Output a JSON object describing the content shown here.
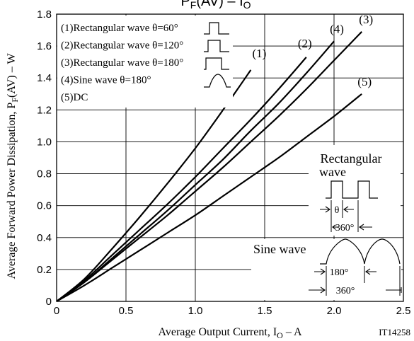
{
  "chart_data": {
    "type": "line",
    "title_main": "P",
    "title_main_sub": "F",
    "title_rest": "(AV)  –  I",
    "title_rest_sub": "O",
    "xlabel_main": "Average Output Current, I",
    "xlabel_sub": "O",
    "xlabel_unit": "  –  A",
    "ylabel_main": "Average Forward Power Dissipation, P",
    "ylabel_sub": "F",
    "ylabel_unit": "(AV)  –  W",
    "figure_code": "IT14258",
    "xlim": [
      0,
      2.5
    ],
    "ylim": [
      0,
      1.8
    ],
    "x_ticks": [
      "0",
      "0.5",
      "1.0",
      "1.5",
      "2.0",
      "2.5"
    ],
    "y_ticks": [
      "0",
      "0.2",
      "0.4",
      "0.6",
      "0.8",
      "1.0",
      "1.2",
      "1.4",
      "1.6",
      "1.8"
    ],
    "grid": true,
    "legend": [
      {
        "key": "1",
        "text": "(1)Rectangular wave θ=60°",
        "symbol": "rect60"
      },
      {
        "key": "2",
        "text": "(2)Rectangular wave θ=120°",
        "symbol": "rect120"
      },
      {
        "key": "3",
        "text": "(3)Rectangular wave θ=180°",
        "symbol": "rect180"
      },
      {
        "key": "4",
        "text": "(4)Sine wave θ=180°",
        "symbol": "sine"
      },
      {
        "key": "5",
        "text": "(5)DC",
        "symbol": ""
      }
    ],
    "series": [
      {
        "name": "(1)",
        "x": [
          0,
          0.2,
          0.4,
          0.6,
          0.8,
          1.0,
          1.2,
          1.4
        ],
        "y": [
          0,
          0.14,
          0.33,
          0.53,
          0.74,
          0.96,
          1.2,
          1.45
        ]
      },
      {
        "name": "(2)",
        "x": [
          0,
          0.2,
          0.4,
          0.6,
          0.8,
          1.0,
          1.2,
          1.4,
          1.6,
          1.8
        ],
        "y": [
          0,
          0.13,
          0.29,
          0.45,
          0.61,
          0.78,
          0.96,
          1.14,
          1.33,
          1.53
        ]
      },
      {
        "name": "(3)",
        "x": [
          0,
          0.2,
          0.4,
          0.6,
          0.8,
          1.0,
          1.2,
          1.4,
          1.6,
          1.8,
          2.0,
          2.2
        ],
        "y": [
          0,
          0.12,
          0.26,
          0.4,
          0.54,
          0.69,
          0.84,
          1.0,
          1.16,
          1.33,
          1.51,
          1.69
        ]
      },
      {
        "name": "(4)",
        "x": [
          0,
          0.2,
          0.4,
          0.6,
          0.8,
          1.0,
          1.2,
          1.4,
          1.6,
          1.8,
          2.0
        ],
        "y": [
          0,
          0.12,
          0.27,
          0.42,
          0.57,
          0.73,
          0.89,
          1.07,
          1.24,
          1.43,
          1.63
        ]
      },
      {
        "name": "(5)",
        "x": [
          0,
          0.2,
          0.4,
          0.6,
          0.8,
          1.0,
          1.2,
          1.4,
          1.6,
          1.8,
          2.0,
          2.2
        ],
        "y": [
          0,
          0.1,
          0.21,
          0.32,
          0.43,
          0.54,
          0.66,
          0.78,
          0.9,
          1.03,
          1.16,
          1.3
        ]
      }
    ],
    "annotations": {
      "rect_title_1": "Rectangular",
      "rect_title_2": "wave",
      "theta_symbol": "θ",
      "rect_period": "360°",
      "sine_title": "Sine wave",
      "sine_half": "180°",
      "sine_period": "360°"
    }
  }
}
